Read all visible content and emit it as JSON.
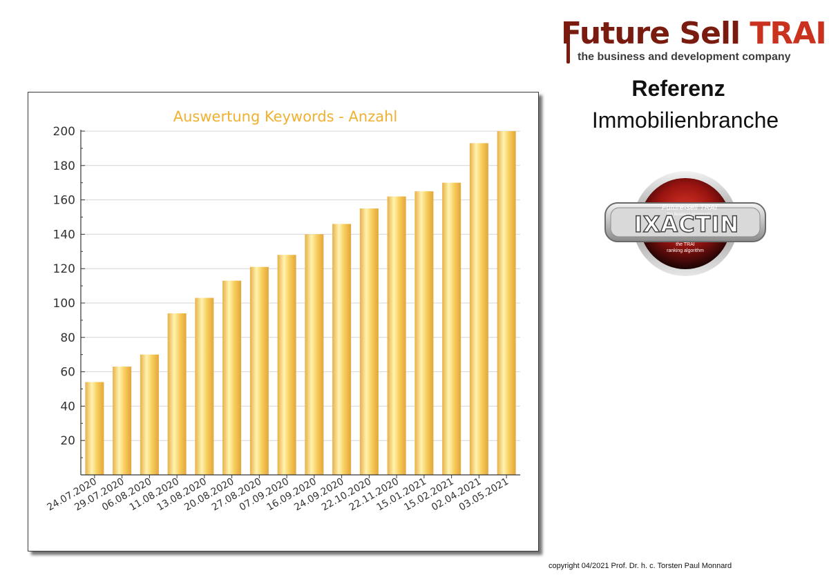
{
  "brand": {
    "title_part1": "Future Sell ",
    "title_part2": "TRAI",
    "tagline": "the business and development company"
  },
  "reference": {
    "title": "Referenz",
    "subtitle": "Immobilienbranche"
  },
  "badge": {
    "top_line": "Future-sell TRAI",
    "sub_line": "the business community",
    "name": "IXACTIN",
    "bottom_line1": "the TRAI",
    "bottom_line2": "ranking algorithm"
  },
  "copyright": "copyright 04/2021 Prof. Dr. h. c. Torsten Paul Monnard",
  "colors": {
    "title": "#f0b030",
    "bar_light": "#fff3b0",
    "bar_mid": "#f7cc5a",
    "bar_dark": "#e3a63a",
    "logo_red": "#7a1b10"
  },
  "chart_data": {
    "type": "bar",
    "title": "Auswertung Keywords - Anzahl",
    "categories": [
      "24.07.2020",
      "29.07.2020",
      "06.08.2020",
      "11.08.2020",
      "13.08.2020",
      "20.08.2020",
      "27.08.2020",
      "07.09.2020",
      "16.09.2020",
      "24.09.2020",
      "22.10.2020",
      "22.11.2020",
      "15.01.2021",
      "15.02.2021",
      "02.04.2021",
      "03.05.2021"
    ],
    "values": [
      54,
      63,
      70,
      94,
      103,
      113,
      121,
      128,
      140,
      146,
      155,
      162,
      165,
      170,
      193,
      200
    ],
    "ylim": [
      0,
      200
    ],
    "yticks": [
      20,
      40,
      60,
      80,
      100,
      120,
      140,
      160,
      180,
      200
    ],
    "grid": true
  }
}
